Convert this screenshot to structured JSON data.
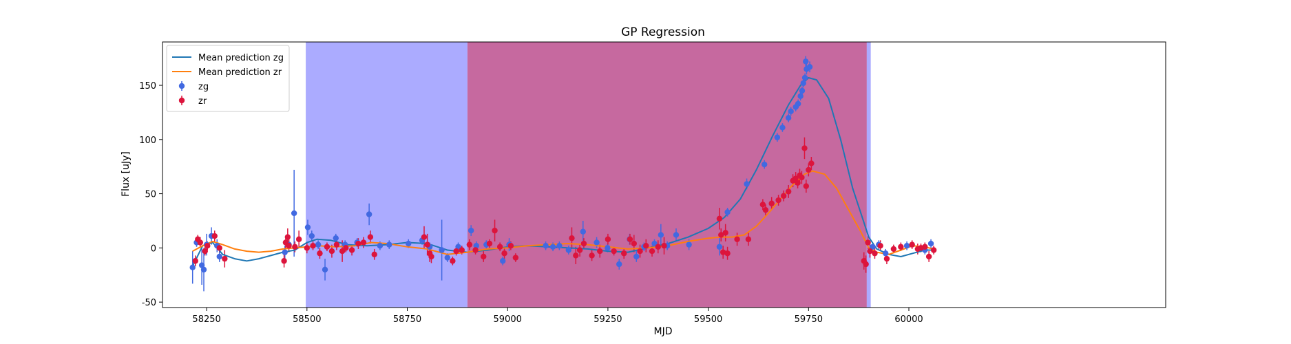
{
  "chart_data": {
    "type": "line",
    "title": "GP Regression",
    "xlabel": "MJD",
    "ylabel": "Flux [uJy]",
    "xlim": [
      58140,
      60640
    ],
    "ylim": [
      -55,
      190
    ],
    "xticks": [
      58250,
      58500,
      58750,
      59000,
      59250,
      59500,
      59750,
      60000
    ],
    "yticks": [
      -50,
      0,
      50,
      100,
      150
    ],
    "legend_position": "top-left",
    "grid": false,
    "shaded_regions": [
      {
        "x0": 58497,
        "x1": 58900,
        "color": "#0000ff",
        "opacity": 0.33
      },
      {
        "x0": 58900,
        "x1": 59895,
        "color": "#c6699f",
        "opacity": 1.0
      },
      {
        "x0": 59895,
        "x1": 59905,
        "color": "#0000ff",
        "opacity": 0.33
      }
    ],
    "series": [
      {
        "name": "Mean prediction zg",
        "kind": "line",
        "color": "#1f77b4",
        "x": [
          58215,
          58240,
          58265,
          58290,
          58320,
          58350,
          58380,
          58410,
          58440,
          58470,
          58500,
          58525,
          58560,
          58600,
          58650,
          58700,
          58750,
          58800,
          58850,
          58900,
          58950,
          59000,
          59050,
          59100,
          59150,
          59200,
          59250,
          59300,
          59350,
          59400,
          59450,
          59500,
          59540,
          59580,
          59620,
          59660,
          59700,
          59730,
          59750,
          59770,
          59800,
          59830,
          59860,
          59900,
          59920,
          59950,
          59980,
          60010,
          60040,
          60060
        ],
        "y": [
          -17,
          2,
          5,
          -6,
          -10,
          -12,
          -10,
          -7,
          -4,
          -2,
          5,
          8,
          7,
          3,
          2,
          3,
          5,
          4,
          -2,
          -4,
          -2,
          1,
          2,
          1,
          0,
          -1,
          -3,
          -4,
          0,
          4,
          10,
          18,
          28,
          45,
          72,
          103,
          132,
          150,
          157,
          155,
          138,
          100,
          55,
          10,
          -1,
          -6,
          -8,
          -5,
          -2,
          -2
        ]
      },
      {
        "name": "Mean prediction zr",
        "kind": "line",
        "color": "#ff7f0e",
        "x": [
          58215,
          58240,
          58265,
          58290,
          58320,
          58350,
          58380,
          58410,
          58440,
          58470,
          58500,
          58530,
          58570,
          58620,
          58660,
          58700,
          58750,
          58800,
          58850,
          58900,
          58950,
          59000,
          59050,
          59100,
          59150,
          59200,
          59250,
          59300,
          59350,
          59400,
          59450,
          59500,
          59530,
          59560,
          59590,
          59620,
          59650,
          59680,
          59710,
          59740,
          59760,
          59790,
          59820,
          59850,
          59880,
          59900,
          59920,
          59950,
          59980,
          60010,
          60040,
          60060
        ],
        "y": [
          -3,
          2,
          6,
          3,
          -1,
          -3,
          -4,
          -3,
          -1,
          0,
          1,
          2,
          1,
          2,
          5,
          4,
          1,
          -1,
          -6,
          -4,
          -1,
          0,
          2,
          3,
          4,
          3,
          1,
          -1,
          0,
          2,
          6,
          9,
          10,
          10,
          12,
          20,
          32,
          45,
          58,
          68,
          71,
          68,
          55,
          35,
          15,
          0,
          -4,
          -6,
          -2,
          2,
          1,
          -1
        ]
      },
      {
        "name": "zg",
        "kind": "errorbar",
        "color": "#4169e1",
        "x": [
          58215,
          58225,
          58238,
          58243,
          58250,
          58262,
          58276,
          58282,
          58445,
          58455,
          58468,
          58502,
          58512,
          58528,
          58545,
          58572,
          58595,
          58625,
          58655,
          58682,
          58705,
          58753,
          58787,
          58806,
          58836,
          58850,
          58877,
          58909,
          58922,
          58947,
          58988,
          59004,
          59095,
          59113,
          59129,
          59152,
          59188,
          59222,
          59249,
          59278,
          59304,
          59321,
          59340,
          59366,
          59382,
          59398,
          59420,
          59452,
          59528,
          59548,
          59596,
          59640,
          59672,
          59685,
          59700,
          59706,
          59718,
          59724,
          59730,
          59734,
          59737,
          59741,
          59743,
          59745,
          59753,
          59910,
          59925,
          59942,
          59995,
          60040,
          60055
        ],
        "y": [
          -18,
          5,
          -16,
          -20,
          3,
          11,
          2,
          -8,
          -4,
          3,
          32,
          19,
          11,
          3,
          -20,
          9,
          3,
          5,
          31,
          2,
          3,
          4,
          7,
          1,
          -2,
          -9,
          1,
          16,
          2,
          3,
          -12,
          3,
          2,
          1,
          2,
          -2,
          15,
          5,
          0,
          -15,
          8,
          -8,
          1,
          4,
          12,
          2,
          12,
          3,
          1,
          33,
          59,
          77,
          102,
          111,
          120,
          126,
          130,
          133,
          140,
          145,
          152,
          157,
          172,
          165,
          167,
          1,
          3,
          -5,
          2,
          -2,
          4
        ],
        "err": [
          15,
          4,
          18,
          20,
          10,
          8,
          6,
          5,
          6,
          4,
          40,
          7,
          5,
          4,
          10,
          4,
          4,
          4,
          10,
          4,
          4,
          4,
          4,
          4,
          28,
          4,
          4,
          5,
          4,
          4,
          4,
          6,
          4,
          4,
          4,
          4,
          10,
          5,
          4,
          5,
          5,
          5,
          4,
          4,
          10,
          4,
          6,
          5,
          8,
          4,
          5,
          4,
          4,
          4,
          4,
          4,
          4,
          4,
          4,
          4,
          4,
          4,
          5,
          5,
          5,
          4,
          4,
          4,
          4,
          4,
          4
        ]
      },
      {
        "name": "zr",
        "kind": "errorbar",
        "color": "#dc143c",
        "x": [
          58222,
          58228,
          58234,
          58246,
          58252,
          58270,
          58282,
          58295,
          58443,
          58447,
          58452,
          58455,
          58470,
          58480,
          58500,
          58515,
          58532,
          58550,
          58562,
          58574,
          58588,
          58597,
          58612,
          58628,
          58641,
          58658,
          58668,
          58792,
          58800,
          58806,
          58810,
          58863,
          58872,
          58886,
          58905,
          58920,
          58940,
          58955,
          58968,
          58981,
          58992,
          59008,
          59020,
          59160,
          59170,
          59180,
          59190,
          59210,
          59230,
          59250,
          59265,
          59290,
          59305,
          59315,
          59330,
          59345,
          59360,
          59375,
          59390,
          59528,
          59532,
          59537,
          59543,
          59548,
          59572,
          59600,
          59636,
          59643,
          59658,
          59675,
          59688,
          59700,
          59711,
          59718,
          59723,
          59728,
          59733,
          59740,
          59744,
          59750,
          59757,
          59888,
          59893,
          59898,
          59903,
          59915,
          59929,
          59945,
          59962,
          59980,
          60008,
          60022,
          60030,
          60040,
          60050,
          60062
        ],
        "y": [
          -12,
          8,
          5,
          -3,
          2,
          11,
          0,
          -10,
          -12,
          5,
          10,
          2,
          1,
          8,
          0,
          2,
          -5,
          1,
          -3,
          3,
          -3,
          0,
          -2,
          4,
          5,
          10,
          -6,
          10,
          3,
          -5,
          -8,
          -12,
          -3,
          -2,
          3,
          -2,
          -8,
          4,
          16,
          1,
          -5,
          2,
          -9,
          9,
          -7,
          -2,
          4,
          -7,
          -3,
          8,
          -3,
          -5,
          8,
          4,
          -3,
          2,
          -3,
          1,
          2,
          27,
          12,
          -4,
          14,
          -5,
          8,
          8,
          40,
          35,
          41,
          44,
          48,
          52,
          62,
          64,
          60,
          67,
          65,
          92,
          57,
          72,
          78,
          -12,
          -15,
          5,
          -3,
          -5,
          2,
          -10,
          -1,
          1,
          3,
          -1,
          0,
          1,
          -8,
          -2
        ],
        "err": [
          5,
          4,
          5,
          4,
          4,
          5,
          4,
          8,
          6,
          6,
          8,
          6,
          5,
          8,
          5,
          4,
          5,
          4,
          6,
          5,
          10,
          4,
          5,
          5,
          5,
          6,
          5,
          10,
          10,
          8,
          6,
          4,
          4,
          4,
          5,
          4,
          5,
          4,
          10,
          4,
          5,
          4,
          4,
          10,
          8,
          6,
          5,
          5,
          6,
          5,
          4,
          5,
          5,
          8,
          6,
          6,
          5,
          6,
          8,
          10,
          6,
          6,
          8,
          6,
          6,
          6,
          5,
          5,
          6,
          5,
          5,
          6,
          6,
          6,
          5,
          6,
          6,
          10,
          6,
          6,
          6,
          8,
          8,
          6,
          6,
          5,
          5,
          5,
          4,
          4,
          4,
          5,
          4,
          4,
          5,
          4
        ]
      }
    ]
  }
}
